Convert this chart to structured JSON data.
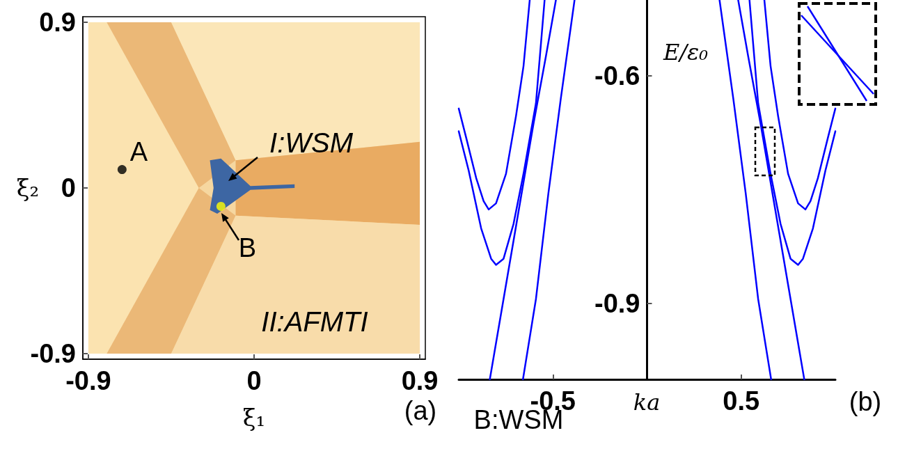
{
  "chart_data": [
    {
      "type": "scatter",
      "xlabel": "ξ₁",
      "ylabel": "ξ₂",
      "xlim": [
        -0.93,
        0.93
      ],
      "ylim": [
        -0.93,
        0.93
      ],
      "xticks": [
        -0.9,
        0,
        0.9
      ],
      "yticks": [
        -0.9,
        0,
        0.9
      ],
      "marker": "circle",
      "series": [
        {
          "x": [
            -0.717,
            -0.18
          ],
          "values": [
            0.1,
            -0.1
          ],
          "colors": [
            "#000000",
            "#ffff00"
          ]
        }
      ],
      "annotations": [
        {
          "text": "A",
          "x": -0.717,
          "y": 0.1
        },
        "I:WSM",
        {
          "text": "B",
          "x": -0.18,
          "y": -0.1
        },
        "II:AFMTI",
        "(a)"
      ]
    },
    {
      "type": "line",
      "xlabel": "ka",
      "ylabel": "E/ε₀",
      "xlim": [
        -1.0,
        1.0
      ],
      "ylim": [
        -1.0,
        -0.5
      ],
      "xticks": [
        -0.5,
        0.5
      ],
      "yticks": [
        -0.6,
        -0.9
      ],
      "marker": "none",
      "line_style": "solid",
      "series": [
        {
          "color": "#0000ff",
          "x": [
            -1.0,
            -0.96,
            -0.907,
            -0.868,
            -0.841,
            -0.802,
            -0.749,
            -0.696,
            -0.656,
            -0.623
          ],
          "values": [
            -0.643,
            -0.682,
            -0.735,
            -0.765,
            -0.776,
            -0.768,
            -0.729,
            -0.653,
            -0.587,
            -0.5
          ]
        },
        {
          "color": "#0000ff",
          "x": [
            -1.0,
            -0.947,
            -0.881,
            -0.828,
            -0.802,
            -0.762,
            -0.709,
            -0.656,
            -0.59,
            -0.544
          ],
          "values": [
            -0.673,
            -0.725,
            -0.801,
            -0.841,
            -0.849,
            -0.841,
            -0.795,
            -0.729,
            -0.636,
            -0.5
          ]
        },
        {
          "color": "#0000ff",
          "x": [
            -0.835,
            -0.762,
            -0.682,
            -0.603,
            -0.537,
            -0.484
          ],
          "values": [
            -1.0,
            -0.894,
            -0.778,
            -0.663,
            -0.574,
            -0.5
          ]
        },
        {
          "color": "#0000ff",
          "x": [
            -0.659,
            -0.59,
            -0.524,
            -0.458,
            -0.385
          ],
          "values": [
            -1.0,
            -0.894,
            -0.755,
            -0.63,
            -0.5
          ]
        },
        {
          "color": "#0000ff",
          "x": [
            1.0,
            0.96,
            0.907,
            0.868,
            0.841,
            0.802,
            0.749,
            0.696,
            0.656,
            0.623
          ],
          "values": [
            -0.643,
            -0.682,
            -0.735,
            -0.765,
            -0.776,
            -0.768,
            -0.729,
            -0.653,
            -0.587,
            -0.5
          ]
        },
        {
          "color": "#0000ff",
          "x": [
            1.0,
            0.947,
            0.881,
            0.828,
            0.802,
            0.762,
            0.709,
            0.656,
            0.59,
            0.544
          ],
          "values": [
            -0.673,
            -0.725,
            -0.801,
            -0.841,
            -0.849,
            -0.841,
            -0.795,
            -0.729,
            -0.636,
            -0.5
          ]
        },
        {
          "color": "#0000ff",
          "x": [
            0.835,
            0.762,
            0.682,
            0.603,
            0.537,
            0.484
          ],
          "values": [
            -1.0,
            -0.894,
            -0.778,
            -0.663,
            -0.574,
            -0.5
          ]
        },
        {
          "color": "#0000ff",
          "x": [
            0.659,
            0.59,
            0.524,
            0.458,
            0.385
          ],
          "values": [
            -1.0,
            -0.894,
            -0.755,
            -0.63,
            -0.5
          ]
        }
      ],
      "annotations": [
        "B:WSM",
        "(b)"
      ]
    }
  ]
}
